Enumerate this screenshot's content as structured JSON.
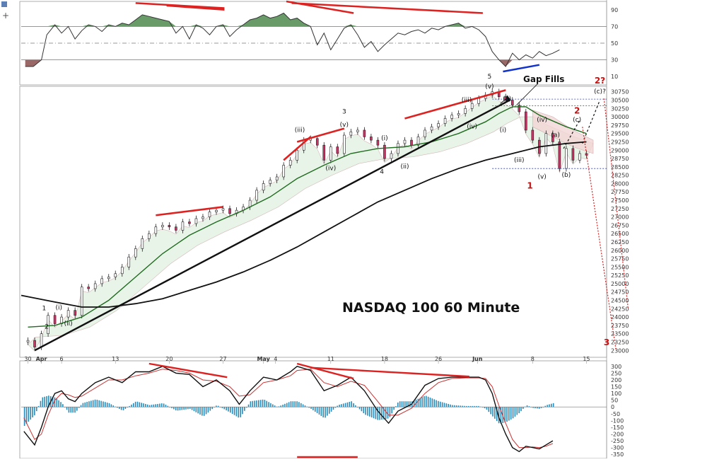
{
  "chart_data": {
    "type": "line",
    "title": "NASDAQ 100 60 Minute",
    "annotation_gap": "Gap Fills",
    "price_axis": {
      "ylim": [
        22900,
        30850
      ],
      "ticks": [
        "30750",
        "30500",
        "30250",
        "30000",
        "29750",
        "29500",
        "29250",
        "29000",
        "28750",
        "28500",
        "28250",
        "28000",
        "27750",
        "27500",
        "27250",
        "27000",
        "26750",
        "26500",
        "26250",
        "26000",
        "25750",
        "25500",
        "25250",
        "25000",
        "24750",
        "24500",
        "24250",
        "24000",
        "23750",
        "23500",
        "23250",
        "23000"
      ]
    },
    "rsi_axis": {
      "ylim": [
        0,
        100
      ],
      "ticks": [
        "90",
        "70",
        "50",
        "30",
        "10"
      ],
      "levels": [
        70,
        50,
        30
      ]
    },
    "macd_axis": {
      "ylim": [
        -370,
        320
      ],
      "ticks": [
        "300",
        "250",
        "200",
        "150",
        "100",
        "50",
        "0",
        "-50",
        "-100",
        "-150",
        "-200",
        "-250",
        "-300",
        "-350"
      ]
    },
    "x_tick_labels": [
      {
        "label": "30",
        "x": 0.0
      },
      {
        "label": "Apr",
        "x": 1.0
      },
      {
        "label": "6",
        "x": 2.5
      },
      {
        "label": "13",
        "x": 6.5
      },
      {
        "label": "20",
        "x": 10.5
      },
      {
        "label": "27",
        "x": 14.5
      },
      {
        "label": "May",
        "x": 17.5
      },
      {
        "label": "4",
        "x": 18.4
      },
      {
        "label": "11",
        "x": 22.5
      },
      {
        "label": "18",
        "x": 26.5
      },
      {
        "label": "26",
        "x": 30.5
      },
      {
        "label": "Jun",
        "x": 33.4
      },
      {
        "label": "8",
        "x": 37.5
      },
      {
        "label": "15",
        "x": 41.5
      }
    ],
    "x_range": [
      -0.5,
      43
    ],
    "price_series": [
      [
        0,
        23300
      ],
      [
        0.5,
        23100
      ],
      [
        1,
        23500
      ],
      [
        1.5,
        24050
      ],
      [
        2,
        23800
      ],
      [
        2.5,
        24000
      ],
      [
        3,
        24200
      ],
      [
        3.5,
        24050
      ],
      [
        4,
        24900
      ],
      [
        4.5,
        24850
      ],
      [
        5,
        25000
      ],
      [
        5.5,
        25150
      ],
      [
        6,
        25200
      ],
      [
        6.5,
        25300
      ],
      [
        7,
        25500
      ],
      [
        7.5,
        25800
      ],
      [
        8,
        26050
      ],
      [
        8.5,
        26350
      ],
      [
        9,
        26500
      ],
      [
        9.5,
        26700
      ],
      [
        10,
        26750
      ],
      [
        10.5,
        26700
      ],
      [
        11,
        26600
      ],
      [
        11.5,
        26850
      ],
      [
        12,
        26800
      ],
      [
        12.5,
        26950
      ],
      [
        13,
        27000
      ],
      [
        13.5,
        27150
      ],
      [
        14,
        27200
      ],
      [
        14.5,
        27250
      ],
      [
        15,
        27100
      ],
      [
        15.5,
        27200
      ],
      [
        16,
        27300
      ],
      [
        16.5,
        27500
      ],
      [
        17,
        27800
      ],
      [
        17.5,
        28000
      ],
      [
        18,
        28100
      ],
      [
        18.5,
        28200
      ],
      [
        19,
        28550
      ],
      [
        19.5,
        28700
      ],
      [
        20,
        29000
      ],
      [
        20.5,
        29300
      ],
      [
        21,
        29350
      ],
      [
        21.5,
        29150
      ],
      [
        22,
        28700
      ],
      [
        22.5,
        29100
      ],
      [
        23,
        28900
      ],
      [
        23.5,
        29450
      ],
      [
        24,
        29550
      ],
      [
        24.5,
        29600
      ],
      [
        25,
        29400
      ],
      [
        25.5,
        29300
      ],
      [
        26,
        29150
      ],
      [
        26.5,
        28750
      ],
      [
        27,
        28900
      ],
      [
        27.5,
        29200
      ],
      [
        28,
        29300
      ],
      [
        28.5,
        29150
      ],
      [
        29,
        29400
      ],
      [
        29.5,
        29600
      ],
      [
        30,
        29700
      ],
      [
        30.5,
        29800
      ],
      [
        31,
        29950
      ],
      [
        31.5,
        30050
      ],
      [
        32,
        30100
      ],
      [
        32.5,
        30250
      ],
      [
        33,
        30400
      ],
      [
        33.5,
        30550
      ],
      [
        34,
        30650
      ],
      [
        34.5,
        30750
      ],
      [
        35,
        30600
      ],
      [
        35.5,
        30500
      ],
      [
        36,
        30350
      ],
      [
        36.5,
        30150
      ],
      [
        37,
        29600
      ],
      [
        37.5,
        29300
      ],
      [
        38,
        28900
      ],
      [
        38.5,
        29500
      ],
      [
        39,
        29250
      ],
      [
        39.5,
        28450
      ],
      [
        40,
        29050
      ],
      [
        40.5,
        28700
      ],
      [
        41,
        28900
      ],
      [
        41.5,
        28850
      ]
    ],
    "ma_fast": [
      [
        0,
        23700
      ],
      [
        2,
        23750
      ],
      [
        4,
        24000
      ],
      [
        6,
        24500
      ],
      [
        8,
        25200
      ],
      [
        10,
        25900
      ],
      [
        12,
        26450
      ],
      [
        14,
        26850
      ],
      [
        16,
        27200
      ],
      [
        18,
        27600
      ],
      [
        20,
        28150
      ],
      [
        22,
        28550
      ],
      [
        24,
        28900
      ],
      [
        26,
        29050
      ],
      [
        28,
        29100
      ],
      [
        30,
        29250
      ],
      [
        32,
        29500
      ],
      [
        34,
        29850
      ],
      [
        35,
        30100
      ],
      [
        36,
        30300
      ],
      [
        37,
        30300
      ],
      [
        38,
        30050
      ],
      [
        40,
        29700
      ],
      [
        41.5,
        29500
      ]
    ],
    "ma_slow": [
      [
        -0.5,
        24650
      ],
      [
        2,
        24450
      ],
      [
        4,
        24300
      ],
      [
        6,
        24300
      ],
      [
        8,
        24400
      ],
      [
        10,
        24550
      ],
      [
        12,
        24800
      ],
      [
        14,
        25050
      ],
      [
        16,
        25350
      ],
      [
        18,
        25700
      ],
      [
        20,
        26100
      ],
      [
        22,
        26550
      ],
      [
        24,
        27000
      ],
      [
        26,
        27450
      ],
      [
        28,
        27800
      ],
      [
        30,
        28150
      ],
      [
        32,
        28450
      ],
      [
        34,
        28700
      ],
      [
        36,
        28900
      ],
      [
        38,
        29100
      ],
      [
        40,
        29200
      ],
      [
        41.5,
        29250
      ]
    ],
    "rsi_series": [
      [
        -0.2,
        22
      ],
      [
        0.4,
        22
      ],
      [
        1,
        30
      ],
      [
        1.4,
        60
      ],
      [
        2,
        72
      ],
      [
        2.5,
        62
      ],
      [
        3,
        70
      ],
      [
        3.5,
        55
      ],
      [
        4,
        65
      ],
      [
        4.5,
        72
      ],
      [
        5,
        70
      ],
      [
        5.5,
        64
      ],
      [
        6,
        72
      ],
      [
        6.5,
        70
      ],
      [
        7,
        74
      ],
      [
        7.5,
        72
      ],
      [
        8,
        78
      ],
      [
        8.5,
        84
      ],
      [
        9,
        82
      ],
      [
        9.5,
        80
      ],
      [
        10,
        78
      ],
      [
        10.5,
        76
      ],
      [
        11,
        62
      ],
      [
        11.5,
        70
      ],
      [
        12,
        55
      ],
      [
        12.5,
        72
      ],
      [
        13,
        68
      ],
      [
        13.5,
        60
      ],
      [
        14,
        70
      ],
      [
        14.5,
        72
      ],
      [
        15,
        58
      ],
      [
        15.5,
        66
      ],
      [
        16,
        72
      ],
      [
        16.5,
        78
      ],
      [
        17,
        80
      ],
      [
        17.5,
        84
      ],
      [
        18,
        80
      ],
      [
        18.5,
        82
      ],
      [
        19,
        86
      ],
      [
        19.5,
        78
      ],
      [
        20,
        80
      ],
      [
        20.5,
        74
      ],
      [
        21,
        70
      ],
      [
        21.5,
        48
      ],
      [
        22,
        62
      ],
      [
        22.5,
        42
      ],
      [
        23,
        55
      ],
      [
        23.5,
        68
      ],
      [
        24,
        72
      ],
      [
        24.5,
        60
      ],
      [
        25,
        45
      ],
      [
        25.5,
        52
      ],
      [
        26,
        40
      ],
      [
        26.5,
        48
      ],
      [
        27,
        55
      ],
      [
        27.5,
        62
      ],
      [
        28,
        60
      ],
      [
        28.5,
        64
      ],
      [
        29,
        66
      ],
      [
        29.5,
        62
      ],
      [
        30,
        68
      ],
      [
        30.5,
        66
      ],
      [
        31,
        70
      ],
      [
        31.5,
        72
      ],
      [
        32,
        74
      ],
      [
        32.5,
        68
      ],
      [
        33,
        70
      ],
      [
        33.5,
        66
      ],
      [
        34,
        58
      ],
      [
        34.5,
        40
      ],
      [
        35,
        30
      ],
      [
        35.5,
        22
      ],
      [
        36,
        38
      ],
      [
        36.5,
        30
      ],
      [
        37,
        36
      ],
      [
        37.5,
        32
      ],
      [
        38,
        40
      ],
      [
        38.5,
        35
      ],
      [
        39,
        38
      ],
      [
        39.5,
        42
      ]
    ],
    "macd_line": [
      [
        -0.3,
        -180
      ],
      [
        0.5,
        -280
      ],
      [
        1,
        -150
      ],
      [
        1.5,
        0
      ],
      [
        2,
        100
      ],
      [
        2.5,
        120
      ],
      [
        3,
        60
      ],
      [
        3.5,
        40
      ],
      [
        4,
        100
      ],
      [
        5,
        180
      ],
      [
        6,
        220
      ],
      [
        7,
        180
      ],
      [
        8,
        260
      ],
      [
        9,
        260
      ],
      [
        10,
        300
      ],
      [
        11,
        250
      ],
      [
        12,
        240
      ],
      [
        13,
        150
      ],
      [
        14,
        200
      ],
      [
        15,
        120
      ],
      [
        15.7,
        20
      ],
      [
        16.5,
        120
      ],
      [
        17.5,
        220
      ],
      [
        18.5,
        200
      ],
      [
        19.5,
        260
      ],
      [
        20,
        300
      ],
      [
        21,
        270
      ],
      [
        22,
        120
      ],
      [
        23,
        160
      ],
      [
        24,
        220
      ],
      [
        25,
        120
      ],
      [
        26,
        -30
      ],
      [
        26.8,
        -120
      ],
      [
        27.5,
        -30
      ],
      [
        28.5,
        20
      ],
      [
        29.5,
        160
      ],
      [
        30.5,
        210
      ],
      [
        31.5,
        220
      ],
      [
        32.5,
        220
      ],
      [
        33.5,
        220
      ],
      [
        34,
        200
      ],
      [
        34.5,
        100
      ],
      [
        35,
        -80
      ],
      [
        35.5,
        -200
      ],
      [
        36,
        -300
      ],
      [
        36.5,
        -330
      ],
      [
        37,
        -290
      ],
      [
        37.5,
        -300
      ],
      [
        38,
        -310
      ],
      [
        38.5,
        -280
      ],
      [
        39,
        -250
      ]
    ],
    "macd_signal": [
      [
        -0.3,
        -80
      ],
      [
        0.5,
        -240
      ],
      [
        1,
        -200
      ],
      [
        1.5,
        -60
      ],
      [
        2,
        50
      ],
      [
        2.5,
        100
      ],
      [
        3,
        90
      ],
      [
        3.5,
        70
      ],
      [
        4,
        80
      ],
      [
        5,
        140
      ],
      [
        6,
        200
      ],
      [
        7,
        200
      ],
      [
        8,
        230
      ],
      [
        9,
        250
      ],
      [
        10,
        280
      ],
      [
        11,
        270
      ],
      [
        12,
        250
      ],
      [
        13,
        200
      ],
      [
        14,
        190
      ],
      [
        15,
        150
      ],
      [
        15.7,
        80
      ],
      [
        16.5,
        90
      ],
      [
        17.5,
        180
      ],
      [
        18.5,
        200
      ],
      [
        19.5,
        230
      ],
      [
        20,
        270
      ],
      [
        21,
        280
      ],
      [
        22,
        180
      ],
      [
        23,
        150
      ],
      [
        24,
        190
      ],
      [
        25,
        160
      ],
      [
        26,
        40
      ],
      [
        26.8,
        -60
      ],
      [
        27.5,
        -60
      ],
      [
        28.5,
        -10
      ],
      [
        29.5,
        100
      ],
      [
        30.5,
        180
      ],
      [
        31.5,
        210
      ],
      [
        32.5,
        215
      ],
      [
        33.5,
        215
      ],
      [
        34,
        210
      ],
      [
        34.5,
        150
      ],
      [
        35,
        10
      ],
      [
        35.5,
        -120
      ],
      [
        36,
        -240
      ],
      [
        36.5,
        -300
      ],
      [
        37,
        -300
      ],
      [
        37.5,
        -295
      ],
      [
        38,
        -300
      ],
      [
        38.5,
        -290
      ],
      [
        39,
        -270
      ]
    ],
    "wave_labels": [
      {
        "text": "1",
        "x": 1.2,
        "y": 24200,
        "style": "black"
      },
      {
        "text": "(i)",
        "x": 2.3,
        "y": 24220,
        "style": "black"
      },
      {
        "text": "2",
        "x": 1.4,
        "y": 23650,
        "style": "black"
      },
      {
        "text": "(ii)",
        "x": 3.0,
        "y": 23750,
        "style": "black"
      },
      {
        "text": "(iii)",
        "x": 20.2,
        "y": 29550,
        "style": "black"
      },
      {
        "text": "3",
        "x": 23.5,
        "y": 30100,
        "style": "black"
      },
      {
        "text": "(v)",
        "x": 23.5,
        "y": 29700,
        "style": "black"
      },
      {
        "text": "(iv)",
        "x": 22.5,
        "y": 28400,
        "style": "black"
      },
      {
        "text": "(i)",
        "x": 26.5,
        "y": 29300,
        "style": "black"
      },
      {
        "text": "4",
        "x": 26.3,
        "y": 28300,
        "style": "black"
      },
      {
        "text": "(ii)",
        "x": 28.0,
        "y": 28450,
        "style": "black"
      },
      {
        "text": "(iii)",
        "x": 32.6,
        "y": 30450,
        "style": "black"
      },
      {
        "text": "(iv)",
        "x": 33.0,
        "y": 29650,
        "style": "black"
      },
      {
        "text": "5",
        "x": 34.3,
        "y": 31150,
        "style": "black"
      },
      {
        "text": "(v)",
        "x": 34.3,
        "y": 30850,
        "style": "black"
      },
      {
        "text": "(ii)",
        "x": 35.6,
        "y": 30480,
        "style": "black"
      },
      {
        "text": "(i)",
        "x": 35.3,
        "y": 29550,
        "style": "black"
      },
      {
        "text": "(iii)",
        "x": 36.5,
        "y": 28650,
        "style": "black"
      },
      {
        "text": "(iv)",
        "x": 38.2,
        "y": 29850,
        "style": "black"
      },
      {
        "text": "(v)",
        "x": 38.2,
        "y": 28150,
        "style": "black"
      },
      {
        "text": "(a)",
        "x": 39.2,
        "y": 29400,
        "style": "black"
      },
      {
        "text": "(b)",
        "x": 40.0,
        "y": 28200,
        "style": "black"
      },
      {
        "text": "(c)",
        "x": 40.8,
        "y": 29850,
        "style": "black"
      },
      {
        "text": "(c)?",
        "x": 42.5,
        "y": 30700,
        "style": "black"
      },
      {
        "text": "1",
        "x": 37.3,
        "y": 27850,
        "style": "red"
      },
      {
        "text": "2",
        "x": 40.8,
        "y": 30100,
        "style": "red"
      },
      {
        "text": "2?",
        "x": 42.5,
        "y": 31000,
        "style": "red"
      },
      {
        "text": "3",
        "x": 43.0,
        "y": 23150,
        "style": "red"
      }
    ]
  }
}
